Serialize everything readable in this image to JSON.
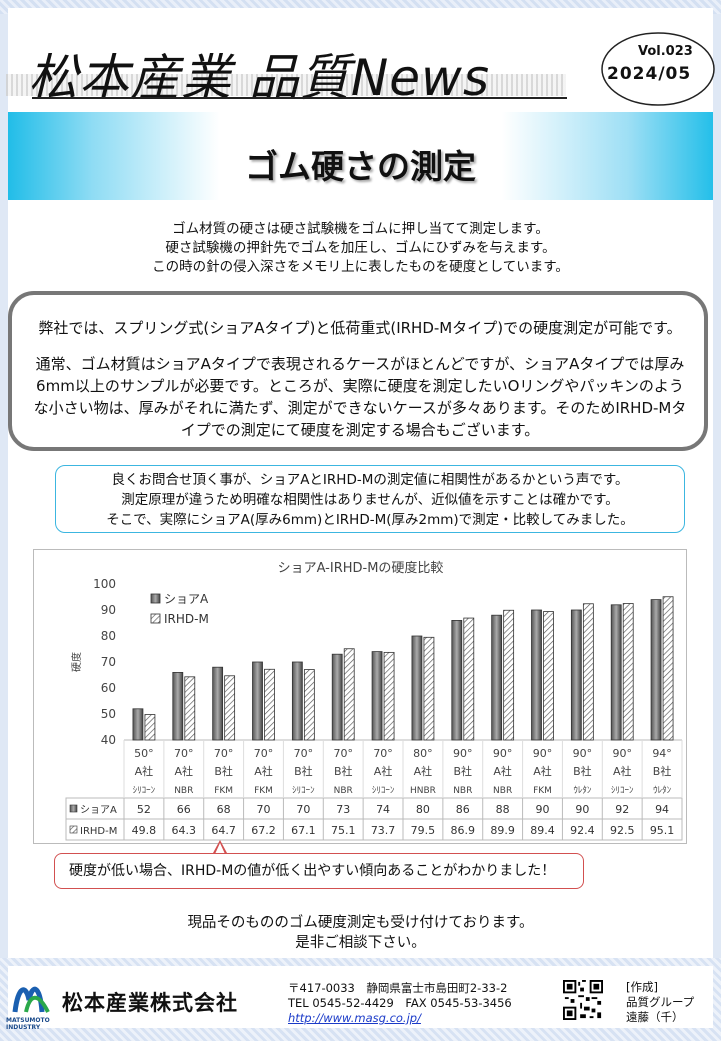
{
  "header": {
    "title": "松本産業 品質News",
    "volume": "Vol.023",
    "date": "2024/05"
  },
  "banner": {
    "title": "ゴム硬さの測定"
  },
  "intro": [
    "ゴム材質の硬さは硬さ試験機をゴムに押し当てて測定します。",
    "硬さ試験機の押針先でゴムを加圧し、ゴムにひずみを与えます。",
    "この時の針の侵入深さをメモリ上に表したものを硬度としています。"
  ],
  "box1": {
    "p1": "弊社では、スプリング式(ショアAタイプ)と低荷重式(IRHD-Mタイプ)での硬度測定が可能です。",
    "p2": "通常、ゴム材質はショアAタイプで表現されるケースがほとんどですが、ショアAタイプでは厚み6mm以上のサンプルが必要です。ところが、実際に硬度を測定したいOリングやパッキンのような小さい物は、厚みがそれに満たず、測定ができないケースが多々あります。そのためIRHD-Mタイプでの測定にて硬度を測定する場合もございます。"
  },
  "box2": [
    "良くお問合せ頂く事が、ショアAとIRHD-Mの測定値に相関性があるかという声です。",
    "測定原理が違うため明確な相関性はありませんが、近似値を示すことは確かです。",
    "そこで、実際にショアA(厚み6mm)とIRHD-M(厚み2mm)で測定・比較してみました。"
  ],
  "chart_data": {
    "type": "bar",
    "title": "ショアA-IRHD-Mの硬度比較",
    "ylabel": "硬度",
    "ylim": [
      40,
      100
    ],
    "yticks": [
      40,
      50,
      60,
      70,
      80,
      90,
      100
    ],
    "categories": [
      [
        "50°",
        "A社",
        "ｼﾘｺｰﾝ"
      ],
      [
        "70°",
        "A社",
        "NBR"
      ],
      [
        "70°",
        "B社",
        "FKM"
      ],
      [
        "70°",
        "A社",
        "FKM"
      ],
      [
        "70°",
        "B社",
        "ｼﾘｺｰﾝ"
      ],
      [
        "70°",
        "B社",
        "NBR"
      ],
      [
        "70°",
        "A社",
        "ｼﾘｺｰﾝ"
      ],
      [
        "80°",
        "A社",
        "HNBR"
      ],
      [
        "90°",
        "B社",
        "NBR"
      ],
      [
        "90°",
        "A社",
        "NBR"
      ],
      [
        "90°",
        "A社",
        "FKM"
      ],
      [
        "90°",
        "B社",
        "ｳﾚﾀﾝ"
      ],
      [
        "90°",
        "A社",
        "ｼﾘｺｰﾝ"
      ],
      [
        "94°",
        "B社",
        "ｳﾚﾀﾝ"
      ]
    ],
    "series": [
      {
        "name": "ショアA",
        "values": [
          52,
          66,
          68,
          70,
          70,
          73,
          74,
          80,
          86,
          88,
          90,
          90,
          92,
          94
        ],
        "labels": [
          "52",
          "66",
          "68",
          "70",
          "70",
          "73",
          "74",
          "80",
          "86",
          "88",
          "90",
          "90",
          "92",
          "94"
        ]
      },
      {
        "name": "IRHD-M",
        "values": [
          49.8,
          64.3,
          64.7,
          67.2,
          67.1,
          75.1,
          73.7,
          79.5,
          86.9,
          89.9,
          89.4,
          92.4,
          92.5,
          95.1
        ],
        "labels": [
          "49.8",
          "64.3",
          "64.7",
          "67.2",
          "67.1",
          "75.1",
          "73.7",
          "79.5",
          "86.9",
          "89.9",
          "89.4",
          "92.4",
          "92.5",
          "95.1"
        ]
      }
    ],
    "legend_position": "top-left",
    "grid": false
  },
  "callout": "硬度が低い場合、IRHD-Mの値が低く出やすい傾向あることがわかりました！",
  "closing": [
    "現品そのもののゴム硬度測定も受け付けております。",
    "是非ご相談下さい。"
  ],
  "footer": {
    "logo_text": [
      "MATSUMOTO",
      "INDUSTRY"
    ],
    "company": "松本産業株式会社",
    "address": "〒417-0033　静岡県富士市島田町2-33-2",
    "tel_fax": "TEL 0545-52-4429　FAX 0545-53-3456",
    "url": "http://www.masg.co.jp/",
    "made_by": [
      "[作成]",
      "品質グループ",
      "遠藤（千）"
    ]
  },
  "colors": {
    "accent": "#21bde8",
    "callout_border": "#d25050",
    "box2_border": "#3cb6e0"
  }
}
